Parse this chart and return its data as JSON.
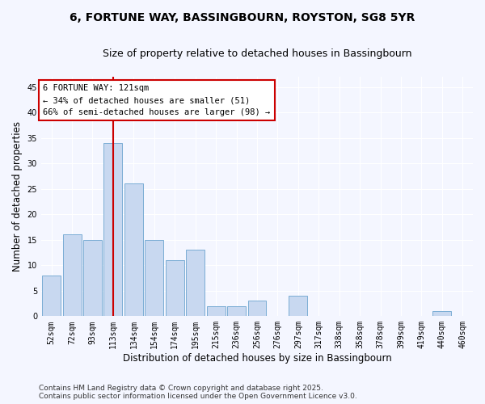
{
  "title": "6, FORTUNE WAY, BASSINGBOURN, ROYSTON, SG8 5YR",
  "subtitle": "Size of property relative to detached houses in Bassingbourn",
  "xlabel": "Distribution of detached houses by size in Bassingbourn",
  "ylabel": "Number of detached properties",
  "categories": [
    "52sqm",
    "72sqm",
    "93sqm",
    "113sqm",
    "134sqm",
    "154sqm",
    "174sqm",
    "195sqm",
    "215sqm",
    "236sqm",
    "256sqm",
    "276sqm",
    "297sqm",
    "317sqm",
    "338sqm",
    "358sqm",
    "378sqm",
    "399sqm",
    "419sqm",
    "440sqm",
    "460sqm"
  ],
  "values": [
    8,
    16,
    15,
    34,
    26,
    15,
    11,
    13,
    2,
    2,
    3,
    0,
    4,
    0,
    0,
    0,
    0,
    0,
    0,
    1,
    0
  ],
  "bar_color": "#c8d8f0",
  "bar_edgecolor": "#7aadd4",
  "vline_x": 3,
  "vline_color": "#cc0000",
  "annotation_text": "6 FORTUNE WAY: 121sqm\n← 34% of detached houses are smaller (51)\n66% of semi-detached houses are larger (98) →",
  "annotation_box_edgecolor": "#cc0000",
  "annotation_box_facecolor": "#ffffff",
  "ylim": [
    0,
    47
  ],
  "yticks": [
    0,
    5,
    10,
    15,
    20,
    25,
    30,
    35,
    40,
    45
  ],
  "footer": "Contains HM Land Registry data © Crown copyright and database right 2025.\nContains public sector information licensed under the Open Government Licence v3.0.",
  "background_color": "#f4f6ff",
  "grid_color": "#ffffff",
  "title_fontsize": 10,
  "subtitle_fontsize": 9,
  "axis_label_fontsize": 8.5,
  "tick_fontsize": 7,
  "annotation_fontsize": 7.5,
  "footer_fontsize": 6.5
}
